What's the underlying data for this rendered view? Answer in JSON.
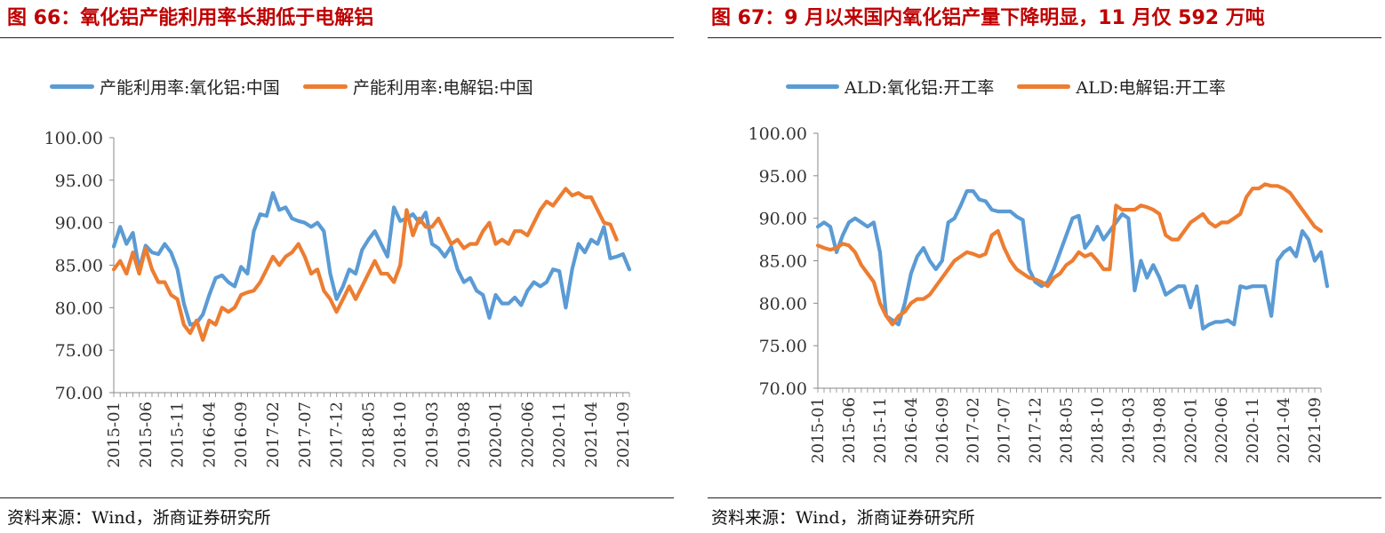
{
  "figures": [
    {
      "title": "图 66：氧化铝产能利用率长期低于电解铝",
      "source": "资料来源：Wind，浙商证券研究所"
    },
    {
      "title": "图 67：9 月以来国内氧化铝产量下降明显，11 月仅 592 万吨",
      "source": "资料来源：Wind，浙商证券研究所"
    }
  ],
  "chart_data": [
    {
      "type": "line",
      "title": "",
      "xlabel": "",
      "ylabel": "",
      "ylim": [
        70,
        100
      ],
      "yticks": [
        "100.00",
        "95.00",
        "90.00",
        "85.00",
        "80.00",
        "75.00",
        "70.00"
      ],
      "x_tick_labels": [
        "2015-01",
        "2015-06",
        "2015-11",
        "2016-04",
        "2016-09",
        "2017-02",
        "2017-07",
        "2017-12",
        "2018-05",
        "2018-10",
        "2019-03",
        "2019-08",
        "2020-01",
        "2020-06",
        "2020-11",
        "2021-04",
        "2021-09"
      ],
      "x_start": "2015-01",
      "x_end": "2021-10",
      "grid": false,
      "legend_position": "top",
      "series": [
        {
          "name": "产能利用率:氧化铝:中国",
          "color": "#5b9bd5",
          "values": [
            87.2,
            89.5,
            87.5,
            88.8,
            84.5,
            87.3,
            86.5,
            86.3,
            87.5,
            86.5,
            84.5,
            80.5,
            78.0,
            78.2,
            79.2,
            81.5,
            83.5,
            83.8,
            83.0,
            82.5,
            84.8,
            84.0,
            89.0,
            91.0,
            90.8,
            93.5,
            91.5,
            91.8,
            90.5,
            90.2,
            90.0,
            89.5,
            90.0,
            89.0,
            84.0,
            81.0,
            82.5,
            84.5,
            84.0,
            86.8,
            88.0,
            89.0,
            87.5,
            86.0,
            91.8,
            90.2,
            90.5,
            91.0,
            90.0,
            91.2,
            87.5,
            87.0,
            86.0,
            87.2,
            84.5,
            83.0,
            83.5,
            82.0,
            81.5,
            78.8,
            81.5,
            80.5,
            80.5,
            81.2,
            80.3,
            82.0,
            83.0,
            82.5,
            83.0,
            84.5,
            84.3,
            80.0,
            84.5,
            87.5,
            86.5,
            88.0,
            87.5,
            89.5,
            85.8,
            86.0,
            86.3,
            84.5
          ]
        },
        {
          "name": "产能利用率:电解铝:中国",
          "color": "#ed7d31",
          "values": [
            84.5,
            85.5,
            84.0,
            86.5,
            84.0,
            87.0,
            84.5,
            83.0,
            83.0,
            81.5,
            81.0,
            78.0,
            77.0,
            78.5,
            76.2,
            78.5,
            78.0,
            80.0,
            79.5,
            80.0,
            81.5,
            81.8,
            82.0,
            83.0,
            84.5,
            86.0,
            85.0,
            86.0,
            86.5,
            87.5,
            86.0,
            84.0,
            84.5,
            82.0,
            81.0,
            79.5,
            81.0,
            82.5,
            81.0,
            82.5,
            84.0,
            85.5,
            84.0,
            84.0,
            83.0,
            85.0,
            91.5,
            88.5,
            90.5,
            89.5,
            89.5,
            90.5,
            89.0,
            87.5,
            88.0,
            87.0,
            87.5,
            87.5,
            89.0,
            90.0,
            87.5,
            88.0,
            87.5,
            89.0,
            89.0,
            88.5,
            90.0,
            91.5,
            92.5,
            92.0,
            93.0,
            94.0,
            93.2,
            93.5,
            93.0,
            93.0,
            91.5,
            90.0,
            89.8,
            88.0
          ]
        }
      ]
    },
    {
      "type": "line",
      "title": "",
      "xlabel": "",
      "ylabel": "",
      "ylim": [
        70,
        100
      ],
      "yticks": [
        "100.00",
        "95.00",
        "90.00",
        "85.00",
        "80.00",
        "75.00",
        "70.00"
      ],
      "x_tick_labels": [
        "2015-01",
        "2015-06",
        "2015-11",
        "2016-04",
        "2016-09",
        "2017-02",
        "2017-07",
        "2017-12",
        "2018-05",
        "2018-10",
        "2019-03",
        "2019-08",
        "2020-01",
        "2020-06",
        "2020-11",
        "2021-04",
        "2021-09"
      ],
      "x_start": "2015-01",
      "x_end": "2021-10",
      "grid": false,
      "legend_position": "top",
      "series": [
        {
          "name": "ALD:氧化铝:开工率",
          "color": "#5b9bd5",
          "values": [
            89.0,
            89.5,
            89.0,
            86.0,
            88.0,
            89.5,
            90.0,
            89.5,
            89.0,
            89.5,
            86.0,
            78.5,
            78.0,
            77.5,
            80.0,
            83.5,
            85.5,
            86.5,
            85.0,
            84.0,
            85.0,
            89.5,
            90.0,
            91.5,
            93.2,
            93.2,
            92.2,
            92.0,
            91.0,
            90.8,
            90.8,
            90.8,
            90.2,
            89.8,
            84.0,
            82.5,
            82.0,
            82.5,
            84.0,
            86.0,
            88.0,
            90.0,
            90.3,
            86.5,
            87.5,
            89.0,
            87.5,
            88.5,
            89.5,
            90.5,
            90.0,
            81.5,
            85.0,
            83.0,
            84.5,
            83.0,
            81.0,
            81.5,
            82.0,
            82.0,
            79.5,
            82.0,
            77.0,
            77.5,
            77.8,
            77.8,
            78.0,
            77.5,
            82.0,
            81.8,
            82.0,
            82.0,
            82.0,
            78.5,
            85.0,
            86.0,
            86.5,
            85.5,
            88.5,
            87.5,
            85.0,
            86.0,
            82.0
          ]
        },
        {
          "name": "ALD:电解铝:开工率",
          "color": "#ed7d31",
          "values": [
            86.8,
            86.5,
            86.3,
            86.5,
            87.0,
            86.8,
            86.0,
            84.5,
            83.5,
            82.5,
            80.0,
            78.5,
            77.5,
            78.5,
            79.0,
            80.0,
            80.5,
            80.5,
            81.0,
            82.0,
            83.0,
            84.0,
            85.0,
            85.5,
            86.0,
            85.8,
            85.5,
            85.8,
            88.0,
            88.5,
            86.5,
            85.0,
            84.0,
            83.5,
            83.0,
            82.8,
            82.5,
            82.0,
            83.0,
            83.5,
            84.5,
            85.0,
            86.0,
            85.5,
            85.8,
            85.0,
            84.0,
            84.0,
            91.5,
            91.0,
            91.0,
            91.0,
            91.5,
            91.3,
            91.0,
            90.5,
            88.0,
            87.5,
            87.5,
            88.5,
            89.5,
            90.0,
            90.5,
            89.5,
            89.0,
            89.5,
            89.5,
            90.0,
            90.5,
            92.5,
            93.5,
            93.5,
            94.0,
            93.8,
            93.8,
            93.5,
            93.0,
            92.0,
            91.0,
            90.0,
            89.0,
            88.5
          ]
        }
      ]
    }
  ]
}
